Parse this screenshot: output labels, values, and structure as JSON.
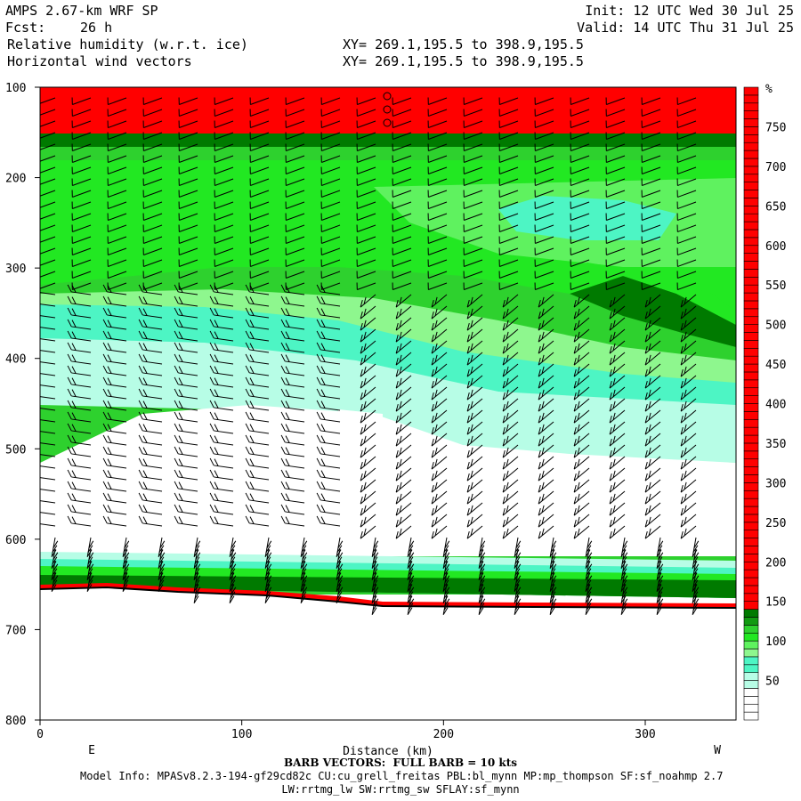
{
  "header": {
    "model": "AMPS 2.67-km WRF SP",
    "init": "Init: 12 UTC Wed 30 Jul 25",
    "fcst_label": "Fcst:",
    "fcst_value": "26 h",
    "valid": "Valid: 14 UTC Thu 31 Jul 25",
    "field1": "Relative humidity (w.r.t. ice)",
    "field2": "Horizontal wind vectors",
    "xy1": "XY= 269.1,195.5 to 398.9,195.5",
    "xy2": "XY= 269.1,195.5 to 398.9,195.5"
  },
  "colors": {
    "red": "#ff0000",
    "dark_green": "#007a00",
    "mid_green": "#2ed12e",
    "bright_green": "#22e822",
    "light_green": "#5ff25f",
    "pale_green": "#8ef78e",
    "aqua": "#4df5c4",
    "pale_aqua": "#b7fde6"
  },
  "chart_data": {
    "type": "cross-section",
    "xlabel": "Distance (km)",
    "x_range": [
      0,
      345
    ],
    "x_ticks": [
      0,
      100,
      200,
      300
    ],
    "y_range": [
      100,
      800
    ],
    "y_ticks": [
      100,
      200,
      300,
      400,
      500,
      600,
      700,
      800
    ],
    "y_scale": "linear, inverted",
    "left_dir": "E",
    "right_dir": "W",
    "colorbar": {
      "unit": "%",
      "labels": [
        50,
        100,
        150,
        200,
        250,
        300,
        350,
        400,
        450,
        500,
        550,
        600,
        650,
        700,
        750
      ]
    },
    "barb_note": "BARB VECTORS:  FULL BARB = 10 kts"
  },
  "footer": {
    "line1": "Model Info: MPASv8.2.3-194-gf29cd82c CU:cu_grell_freitas PBL:bl_mynn MP:mp_thompson SF:sf_noahmp 2.7",
    "line2": "LW:rrtmg_lw SW:rrtmg_sw SFLAY:sf_mynn"
  }
}
